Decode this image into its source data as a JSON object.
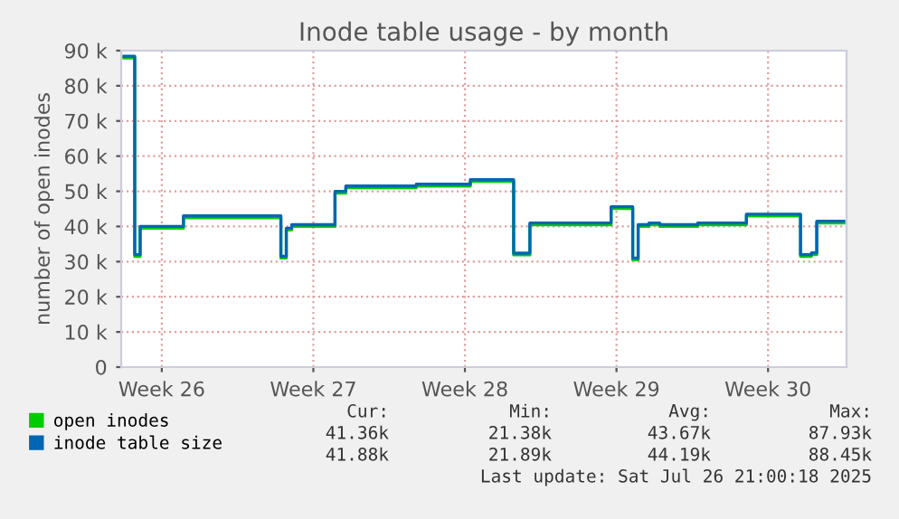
{
  "chart_data": {
    "type": "step",
    "title": "Inode table usage - by month",
    "ylabel": "number of open inodes",
    "categories": [
      null,
      null,
      null,
      null,
      null,
      null,
      null,
      "Week 26",
      null,
      null,
      null,
      null,
      null,
      null,
      null,
      null,
      null,
      null,
      null,
      null,
      null,
      null,
      null,
      null,
      null,
      null,
      null,
      null,
      null,
      null,
      null,
      null,
      null,
      null,
      null,
      "Week 27",
      null,
      null,
      null,
      null,
      null,
      null,
      null,
      null,
      null,
      null,
      null,
      null,
      null,
      null,
      null,
      null,
      null,
      null,
      null,
      null,
      null,
      null,
      null,
      null,
      null,
      null,
      null,
      "Week 28",
      null,
      null,
      null,
      null,
      null,
      null,
      null,
      null,
      null,
      null,
      null,
      null,
      null,
      null,
      null,
      null,
      null,
      null,
      null,
      null,
      null,
      null,
      null,
      null,
      null,
      null,
      null,
      "Week 29",
      null,
      null,
      null,
      null,
      null,
      null,
      null,
      null,
      null,
      null,
      null,
      null,
      null,
      null,
      null,
      null,
      null,
      null,
      null,
      null,
      null,
      null,
      null,
      null,
      null,
      null,
      null,
      "Week 30",
      null,
      null,
      null,
      null,
      null,
      null,
      null,
      null,
      null,
      null,
      null,
      null,
      null,
      null
    ],
    "series": [
      {
        "name": "open inodes",
        "color": "#00cc00",
        "values": [
          87900,
          87900,
          31500,
          39500,
          39500,
          39500,
          39500,
          39500,
          39500,
          39500,
          39500,
          42500,
          42500,
          42500,
          42500,
          42500,
          42500,
          42500,
          42500,
          42500,
          42500,
          42500,
          42500,
          42500,
          42500,
          42500,
          42500,
          42500,
          42500,
          31000,
          39000,
          40000,
          40000,
          40000,
          40000,
          40000,
          40000,
          40000,
          40000,
          49500,
          49500,
          51000,
          51000,
          51000,
          51000,
          51000,
          51000,
          51000,
          51000,
          51000,
          51000,
          51000,
          51000,
          51000,
          51500,
          51500,
          51500,
          51500,
          51500,
          51500,
          51500,
          51500,
          51500,
          51500,
          52800,
          52800,
          52800,
          52800,
          52800,
          52800,
          52800,
          52800,
          31900,
          31900,
          31900,
          40500,
          40500,
          40500,
          40500,
          40500,
          40500,
          40500,
          40500,
          40500,
          40500,
          40500,
          40500,
          40500,
          40500,
          40500,
          45100,
          45100,
          45100,
          45100,
          30500,
          40000,
          40000,
          40500,
          40500,
          40000,
          40000,
          40000,
          40000,
          40000,
          40000,
          40000,
          40500,
          40500,
          40500,
          40500,
          40500,
          40500,
          40500,
          40500,
          40500,
          43000,
          43000,
          43000,
          43000,
          43000,
          43000,
          43000,
          43000,
          43000,
          43000,
          31500,
          31500,
          32000,
          41000,
          41000,
          41000,
          41000,
          41000,
          41000
        ]
      },
      {
        "name": "inode table size",
        "color": "#0066b3",
        "values": [
          88400,
          88400,
          32000,
          40000,
          40000,
          40000,
          40000,
          40000,
          40000,
          40000,
          40000,
          43000,
          43000,
          43000,
          43000,
          43000,
          43000,
          43000,
          43000,
          43000,
          43000,
          43000,
          43000,
          43000,
          43000,
          43000,
          43000,
          43000,
          43000,
          31500,
          39500,
          40500,
          40500,
          40500,
          40500,
          40500,
          40500,
          40500,
          40500,
          50000,
          50000,
          51500,
          51500,
          51500,
          51500,
          51500,
          51500,
          51500,
          51500,
          51500,
          51500,
          51500,
          51500,
          51500,
          52000,
          52000,
          52000,
          52000,
          52000,
          52000,
          52000,
          52000,
          52000,
          52000,
          53300,
          53300,
          53300,
          53300,
          53300,
          53300,
          53300,
          53300,
          32400,
          32400,
          32400,
          41000,
          41000,
          41000,
          41000,
          41000,
          41000,
          41000,
          41000,
          41000,
          41000,
          41000,
          41000,
          41000,
          41000,
          41000,
          45600,
          45600,
          45600,
          45600,
          31000,
          40500,
          40500,
          41000,
          41000,
          40500,
          40500,
          40500,
          40500,
          40500,
          40500,
          40500,
          41000,
          41000,
          41000,
          41000,
          41000,
          41000,
          41000,
          41000,
          41000,
          43500,
          43500,
          43500,
          43500,
          43500,
          43500,
          43500,
          43500,
          43500,
          43500,
          32000,
          32000,
          32500,
          41500,
          41500,
          41500,
          41500,
          41500,
          41500
        ]
      }
    ],
    "ylim": [
      0,
      90000
    ],
    "yticks": [
      0,
      {
        "value": 10000,
        "label": "10 k"
      },
      {
        "value": 20000,
        "label": "20 k"
      },
      {
        "value": 30000,
        "label": "30 k"
      },
      {
        "value": 40000,
        "label": "40 k"
      },
      {
        "value": 50000,
        "label": "50 k"
      },
      {
        "value": 60000,
        "label": "60 k"
      },
      {
        "value": 70000,
        "label": "70 k"
      },
      {
        "value": 80000,
        "label": "80 k"
      },
      {
        "value": 90000,
        "label": "90 k"
      }
    ],
    "grid": true,
    "legend": "bottom",
    "annotations": [
      "Cur:",
      "Min:",
      "Avg:",
      "Max:",
      "41.36k",
      "21.38k",
      "43.67k",
      "87.93k",
      "41.88k",
      "21.89k",
      "44.19k",
      "88.45k",
      "Last update: Sat Jul 26 21:00:18 2025"
    ]
  }
}
